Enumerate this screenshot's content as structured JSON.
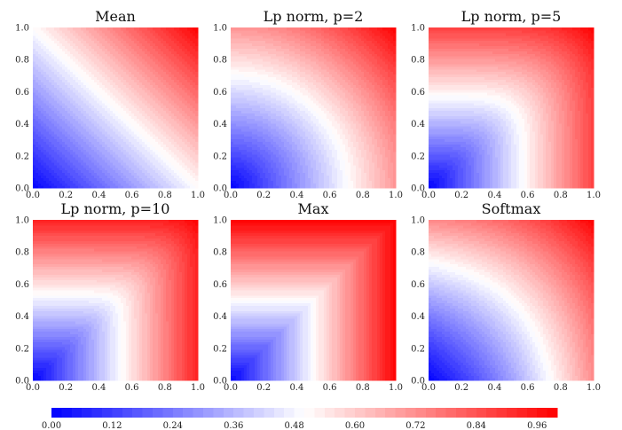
{
  "chart_data": [
    {
      "type": "heatmap",
      "title": "Mean",
      "function": "mean",
      "p": null,
      "xlim": [
        0,
        1
      ],
      "ylim": [
        0,
        1
      ],
      "xticks": [
        "0.0",
        "0.2",
        "0.4",
        "0.6",
        "0.8",
        "1.0"
      ],
      "yticks": [
        "0.0",
        "0.2",
        "0.4",
        "0.6",
        "0.8",
        "1.0"
      ]
    },
    {
      "type": "heatmap",
      "title": "Lp norm, p=2",
      "function": "lp",
      "p": 2,
      "xlim": [
        0,
        1
      ],
      "ylim": [
        0,
        1
      ],
      "xticks": [
        "0.0",
        "0.2",
        "0.4",
        "0.6",
        "0.8",
        "1.0"
      ],
      "yticks": [
        "0.0",
        "0.2",
        "0.4",
        "0.6",
        "0.8",
        "1.0"
      ]
    },
    {
      "type": "heatmap",
      "title": "Lp norm, p=5",
      "function": "lp",
      "p": 5,
      "xlim": [
        0,
        1
      ],
      "ylim": [
        0,
        1
      ],
      "xticks": [
        "0.0",
        "0.2",
        "0.4",
        "0.6",
        "0.8",
        "1.0"
      ],
      "yticks": [
        "0.0",
        "0.2",
        "0.4",
        "0.6",
        "0.8",
        "1.0"
      ]
    },
    {
      "type": "heatmap",
      "title": "Lp norm, p=10",
      "function": "lp",
      "p": 10,
      "xlim": [
        0,
        1
      ],
      "ylim": [
        0,
        1
      ],
      "xticks": [
        "0.0",
        "0.2",
        "0.4",
        "0.6",
        "0.8",
        "1.0"
      ],
      "yticks": [
        "0.0",
        "0.2",
        "0.4",
        "0.6",
        "0.8",
        "1.0"
      ]
    },
    {
      "type": "heatmap",
      "title": "Max",
      "function": "max",
      "p": null,
      "xlim": [
        0,
        1
      ],
      "ylim": [
        0,
        1
      ],
      "xticks": [
        "0.0",
        "0.2",
        "0.4",
        "0.6",
        "0.8",
        "1.0"
      ],
      "yticks": [
        "0.0",
        "0.2",
        "0.4",
        "0.6",
        "0.8",
        "1.0"
      ]
    },
    {
      "type": "heatmap",
      "title": "Softmax",
      "function": "softmax",
      "p": null,
      "xlim": [
        0,
        1
      ],
      "ylim": [
        0,
        1
      ],
      "xticks": [
        "0.0",
        "0.2",
        "0.4",
        "0.6",
        "0.8",
        "1.0"
      ],
      "yticks": [
        "0.0",
        "0.2",
        "0.4",
        "0.6",
        "0.8",
        "1.0"
      ]
    }
  ],
  "colorbar": {
    "range": [
      0,
      1
    ],
    "ticks": [
      "0.00",
      "0.12",
      "0.24",
      "0.36",
      "0.48",
      "0.60",
      "0.72",
      "0.84",
      "0.96"
    ],
    "colormap": "bwr",
    "levels": 50,
    "colors": {
      "low": "#0000ff",
      "mid": "#ffffff",
      "high": "#ff0000"
    }
  }
}
